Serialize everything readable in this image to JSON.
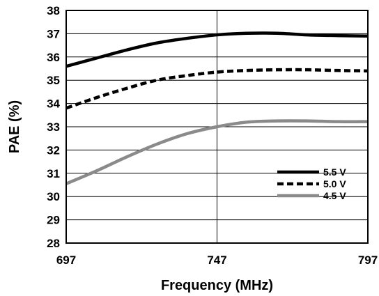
{
  "chart_data": {
    "type": "line",
    "xlabel": "Frequency (MHz)",
    "ylabel": "PAE (%)",
    "xlim": [
      697,
      797
    ],
    "ylim": [
      28,
      38
    ],
    "xticks": [
      697,
      747,
      797
    ],
    "xtick_labels": [
      "697",
      "747",
      "797"
    ],
    "yticks": [
      28,
      29,
      30,
      31,
      32,
      33,
      34,
      35,
      36,
      37,
      38
    ],
    "ytick_labels": [
      "28",
      "29",
      "30",
      "31",
      "32",
      "33",
      "34",
      "35",
      "36",
      "37",
      "38"
    ],
    "grid": "horizontal at every y tick, vertical at x ticks",
    "legend": {
      "placement": "right"
    },
    "x": [
      697,
      707,
      717,
      727,
      737,
      747,
      757,
      767,
      777,
      787,
      797
    ],
    "series": [
      {
        "name": "5.5 V",
        "color": "#000000",
        "dash": "solid",
        "values": [
          35.6,
          35.95,
          36.3,
          36.6,
          36.8,
          36.95,
          37.02,
          37.02,
          36.95,
          36.92,
          36.9
        ]
      },
      {
        "name": "5.0 V",
        "color": "#000000",
        "dash": "dashed",
        "values": [
          33.8,
          34.25,
          34.65,
          35.0,
          35.2,
          35.35,
          35.42,
          35.45,
          35.45,
          35.42,
          35.4
        ]
      },
      {
        "name": "4.5 V",
        "color": "#8a8a8a",
        "dash": "solid",
        "values": [
          30.55,
          31.1,
          31.7,
          32.25,
          32.7,
          33.0,
          33.2,
          33.25,
          33.25,
          33.22,
          33.22
        ]
      }
    ]
  }
}
